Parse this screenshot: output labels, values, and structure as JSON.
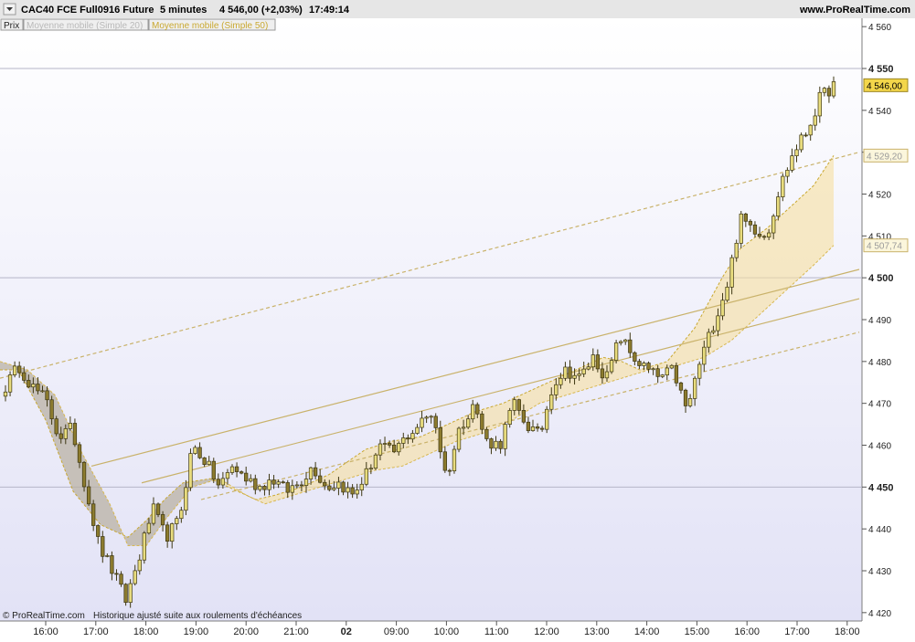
{
  "header": {
    "title": "CAC40 FCE Full0916 Future",
    "interval": "5 minutes",
    "price_change": "4 546,00 (+2,03%)",
    "time": "17:49:14",
    "site": "www.ProRealTime.com"
  },
  "legend": {
    "items": [
      "Prix",
      "Moyenne mobile (Simple 20)",
      "Moyenne mobile (Simple 50)"
    ]
  },
  "footer": {
    "copyright": "© ProRealTime.com",
    "note": "Historique ajusté suite aux roulements d'échéances"
  },
  "colors": {
    "candle_up": "#e8dc7e",
    "candle_down": "#8c7b2e",
    "candle_border": "#3d3612",
    "trend_line": "#c9b26a",
    "ma_fill": "#f7dfa0",
    "ma_fill_left": "#b9b2a4",
    "bg_top": "#ffffff",
    "bg_bottom": "#e2e2f6",
    "price_label": "#f3d64a"
  },
  "chart_data": {
    "type": "candlestick",
    "y_range": [
      4418,
      4562
    ],
    "x_ticks": [
      "16:00",
      "17:00",
      "18:00",
      "19:00",
      "20:00",
      "21:00",
      "02",
      "09:00",
      "10:00",
      "11:00",
      "12:00",
      "13:00",
      "14:00",
      "15:00",
      "16:00",
      "17:00",
      "18:00"
    ],
    "y_ticks": [
      {
        "v": 4560,
        "label": "4 560"
      },
      {
        "v": 4550,
        "label": "4 550"
      },
      {
        "v": 4540,
        "label": "4 540"
      },
      {
        "v": 4530,
        "label": "4 530"
      },
      {
        "v": 4520,
        "label": "4 520"
      },
      {
        "v": 4510,
        "label": "4 510"
      },
      {
        "v": 4500,
        "label": "4 500"
      },
      {
        "v": 4490,
        "label": "4 490"
      },
      {
        "v": 4480,
        "label": "4 480"
      },
      {
        "v": 4470,
        "label": "4 470"
      },
      {
        "v": 4460,
        "label": "4 460"
      },
      {
        "v": 4450,
        "label": "4 450"
      },
      {
        "v": 4440,
        "label": "4 440"
      },
      {
        "v": 4430,
        "label": "4 430"
      },
      {
        "v": 4420,
        "label": "4 420"
      }
    ],
    "price_labels": [
      {
        "value": 4546.0,
        "label": "4 546,00"
      },
      {
        "value": 4529.2,
        "label": "4 529,20"
      },
      {
        "value": 4507.74,
        "label": "4 507,74"
      }
    ],
    "keypoints": [
      4474,
      4479,
      4474,
      4471,
      4462,
      4464,
      4450,
      4436,
      4430,
      4423,
      4433,
      4445,
      4438,
      4442,
      4460,
      4456,
      4450,
      4455,
      4452,
      4450,
      4452,
      4449,
      4451,
      4455,
      4450,
      4451,
      4448,
      4453,
      4460,
      4458,
      4462,
      4465,
      4468,
      4452,
      4464,
      4470,
      4461,
      4460,
      4470,
      4465,
      4462,
      4475,
      4478,
      4476,
      4481,
      4476,
      4486,
      4481,
      4478,
      4476,
      4478,
      4468,
      4480,
      4489,
      4498,
      4514,
      4512,
      4510,
      4522,
      4530,
      4535,
      4543,
      4546
    ],
    "ma20": [
      [
        0,
        4478
      ],
      [
        20,
        4478
      ],
      [
        50,
        4466
      ],
      [
        80,
        4449
      ],
      [
        110,
        4441
      ],
      [
        140,
        4438
      ],
      [
        160,
        4442
      ],
      [
        180,
        4447
      ],
      [
        200,
        4451
      ],
      [
        230,
        4452
      ],
      [
        260,
        4449
      ],
      [
        280,
        4447
      ],
      [
        300,
        4448
      ],
      [
        330,
        4450
      ],
      [
        360,
        4453
      ],
      [
        380,
        4456
      ],
      [
        400,
        4459
      ],
      [
        430,
        4461
      ],
      [
        460,
        4462
      ],
      [
        490,
        4465
      ],
      [
        520,
        4468
      ],
      [
        550,
        4470
      ],
      [
        580,
        4473
      ],
      [
        610,
        4476
      ],
      [
        640,
        4479
      ],
      [
        660,
        4481
      ],
      [
        680,
        4480
      ],
      [
        700,
        4478
      ],
      [
        730,
        4480
      ],
      [
        760,
        4488
      ],
      [
        790,
        4500
      ],
      [
        810,
        4507
      ],
      [
        840,
        4512
      ],
      [
        870,
        4518
      ],
      [
        890,
        4522
      ],
      [
        912,
        4529.2
      ]
    ],
    "ma50": [
      [
        0,
        4480
      ],
      [
        30,
        4478
      ],
      [
        60,
        4472
      ],
      [
        90,
        4458
      ],
      [
        120,
        4446
      ],
      [
        140,
        4436
      ],
      [
        160,
        4436
      ],
      [
        180,
        4442
      ],
      [
        210,
        4450
      ],
      [
        240,
        4452
      ],
      [
        270,
        4448
      ],
      [
        290,
        4446
      ],
      [
        320,
        4448
      ],
      [
        350,
        4450
      ],
      [
        380,
        4452
      ],
      [
        410,
        4454
      ],
      [
        440,
        4455
      ],
      [
        470,
        4458
      ],
      [
        500,
        4461
      ],
      [
        530,
        4463
      ],
      [
        560,
        4466
      ],
      [
        590,
        4470
      ],
      [
        620,
        4472
      ],
      [
        650,
        4474
      ],
      [
        680,
        4476
      ],
      [
        710,
        4478
      ],
      [
        740,
        4479
      ],
      [
        770,
        4481
      ],
      [
        800,
        4485
      ],
      [
        830,
        4491
      ],
      [
        860,
        4497
      ],
      [
        890,
        4503
      ],
      [
        912,
        4507.74
      ]
    ],
    "trend_lines": [
      {
        "dashed": false,
        "from": [
          100,
          4455
        ],
        "to": [
          940,
          4502
        ]
      },
      {
        "dashed": false,
        "from": [
          155,
          4451
        ],
        "to": [
          940,
          4495
        ]
      },
      {
        "dashed": true,
        "from": [
          0,
          4476
        ],
        "to": [
          940,
          4530
        ]
      },
      {
        "dashed": true,
        "from": [
          220,
          4447
        ],
        "to": [
          940,
          4487
        ]
      }
    ]
  }
}
